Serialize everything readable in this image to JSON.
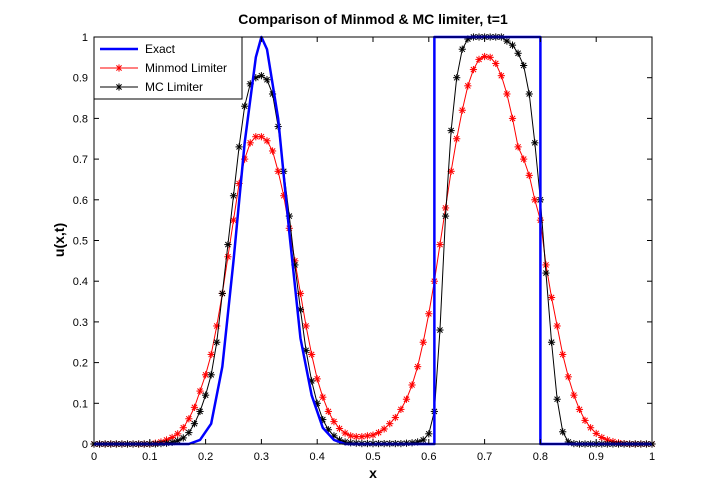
{
  "chart_data": {
    "type": "line",
    "title": "Comparison of Minmod & MC limiter, t=1",
    "xlabel": "x",
    "ylabel": "u(x,t)",
    "xlim": [
      0,
      1
    ],
    "ylim": [
      0,
      1
    ],
    "x_ticks": [
      "0",
      "0.1",
      "0.2",
      "0.3",
      "0.4",
      "0.5",
      "0.6",
      "0.7",
      "0.8",
      "0.9",
      "1"
    ],
    "y_ticks": [
      "0",
      "0.1",
      "0.2",
      "0.3",
      "0.4",
      "0.5",
      "0.6",
      "0.7",
      "0.8",
      "0.9",
      "1"
    ],
    "grid": false,
    "legend_position": "top-left",
    "series": [
      {
        "name": "Exact",
        "color": "#0000ff",
        "marker": "none",
        "points": [
          [
            0,
            0
          ],
          [
            0.17,
            0
          ],
          [
            0.19,
            0.01
          ],
          [
            0.21,
            0.05
          ],
          [
            0.23,
            0.19
          ],
          [
            0.25,
            0.45
          ],
          [
            0.27,
            0.74
          ],
          [
            0.29,
            0.95
          ],
          [
            0.3,
            1.0
          ],
          [
            0.31,
            0.97
          ],
          [
            0.33,
            0.8
          ],
          [
            0.35,
            0.52
          ],
          [
            0.37,
            0.26
          ],
          [
            0.39,
            0.12
          ],
          [
            0.41,
            0.04
          ],
          [
            0.43,
            0.01
          ],
          [
            0.45,
            0
          ],
          [
            0.61,
            0
          ],
          [
            0.61,
            1.0
          ],
          [
            0.8,
            1.0
          ],
          [
            0.8,
            0
          ],
          [
            1.0,
            0
          ]
        ]
      },
      {
        "name": "Minmod Limiter",
        "color": "#ff0000",
        "marker": "*",
        "points": [
          [
            0,
            0
          ],
          [
            0.01,
            0
          ],
          [
            0.02,
            0
          ],
          [
            0.03,
            0
          ],
          [
            0.04,
            0
          ],
          [
            0.05,
            0
          ],
          [
            0.06,
            0
          ],
          [
            0.07,
            0
          ],
          [
            0.08,
            0
          ],
          [
            0.09,
            0
          ],
          [
            0.1,
            0
          ],
          [
            0.11,
            0.002
          ],
          [
            0.12,
            0.005
          ],
          [
            0.13,
            0.01
          ],
          [
            0.14,
            0.016
          ],
          [
            0.15,
            0.025
          ],
          [
            0.16,
            0.04
          ],
          [
            0.17,
            0.062
          ],
          [
            0.18,
            0.09
          ],
          [
            0.19,
            0.13
          ],
          [
            0.2,
            0.17
          ],
          [
            0.21,
            0.22
          ],
          [
            0.22,
            0.29
          ],
          [
            0.23,
            0.37
          ],
          [
            0.24,
            0.46
          ],
          [
            0.25,
            0.55
          ],
          [
            0.26,
            0.64
          ],
          [
            0.27,
            0.7
          ],
          [
            0.28,
            0.74
          ],
          [
            0.29,
            0.755
          ],
          [
            0.3,
            0.755
          ],
          [
            0.31,
            0.745
          ],
          [
            0.32,
            0.72
          ],
          [
            0.33,
            0.67
          ],
          [
            0.34,
            0.61
          ],
          [
            0.35,
            0.53
          ],
          [
            0.36,
            0.45
          ],
          [
            0.37,
            0.37
          ],
          [
            0.38,
            0.29
          ],
          [
            0.39,
            0.22
          ],
          [
            0.4,
            0.16
          ],
          [
            0.41,
            0.115
          ],
          [
            0.42,
            0.08
          ],
          [
            0.43,
            0.055
          ],
          [
            0.44,
            0.038
          ],
          [
            0.45,
            0.027
          ],
          [
            0.46,
            0.02
          ],
          [
            0.47,
            0.018
          ],
          [
            0.48,
            0.018
          ],
          [
            0.49,
            0.02
          ],
          [
            0.5,
            0.022
          ],
          [
            0.51,
            0.028
          ],
          [
            0.52,
            0.037
          ],
          [
            0.53,
            0.05
          ],
          [
            0.54,
            0.065
          ],
          [
            0.55,
            0.085
          ],
          [
            0.56,
            0.11
          ],
          [
            0.57,
            0.145
          ],
          [
            0.58,
            0.19
          ],
          [
            0.59,
            0.25
          ],
          [
            0.6,
            0.32
          ],
          [
            0.61,
            0.4
          ],
          [
            0.62,
            0.49
          ],
          [
            0.63,
            0.58
          ],
          [
            0.64,
            0.67
          ],
          [
            0.65,
            0.75
          ],
          [
            0.66,
            0.82
          ],
          [
            0.67,
            0.88
          ],
          [
            0.68,
            0.92
          ],
          [
            0.69,
            0.945
          ],
          [
            0.7,
            0.952
          ],
          [
            0.71,
            0.95
          ],
          [
            0.72,
            0.935
          ],
          [
            0.73,
            0.905
          ],
          [
            0.74,
            0.86
          ],
          [
            0.75,
            0.8
          ],
          [
            0.76,
            0.73
          ],
          [
            0.77,
            0.7
          ],
          [
            0.78,
            0.66
          ],
          [
            0.79,
            0.6
          ],
          [
            0.8,
            0.55
          ],
          [
            0.81,
            0.44
          ],
          [
            0.82,
            0.36
          ],
          [
            0.83,
            0.29
          ],
          [
            0.84,
            0.22
          ],
          [
            0.85,
            0.165
          ],
          [
            0.86,
            0.12
          ],
          [
            0.87,
            0.085
          ],
          [
            0.88,
            0.058
          ],
          [
            0.89,
            0.04
          ],
          [
            0.9,
            0.026
          ],
          [
            0.91,
            0.016
          ],
          [
            0.92,
            0.01
          ],
          [
            0.93,
            0.006
          ],
          [
            0.94,
            0.003
          ],
          [
            0.95,
            0.001
          ],
          [
            0.96,
            0
          ],
          [
            0.97,
            0
          ],
          [
            0.98,
            0
          ],
          [
            0.99,
            0
          ],
          [
            1.0,
            0
          ]
        ]
      },
      {
        "name": "MC Limiter",
        "color": "#000000",
        "marker": "*",
        "points": [
          [
            0,
            0
          ],
          [
            0.01,
            0
          ],
          [
            0.02,
            0
          ],
          [
            0.03,
            0
          ],
          [
            0.04,
            0
          ],
          [
            0.05,
            0
          ],
          [
            0.06,
            0
          ],
          [
            0.07,
            0
          ],
          [
            0.08,
            0
          ],
          [
            0.09,
            0
          ],
          [
            0.1,
            0
          ],
          [
            0.11,
            0
          ],
          [
            0.12,
            0.001
          ],
          [
            0.13,
            0.002
          ],
          [
            0.14,
            0.004
          ],
          [
            0.15,
            0.008
          ],
          [
            0.16,
            0.015
          ],
          [
            0.17,
            0.028
          ],
          [
            0.18,
            0.05
          ],
          [
            0.19,
            0.08
          ],
          [
            0.2,
            0.12
          ],
          [
            0.21,
            0.17
          ],
          [
            0.22,
            0.25
          ],
          [
            0.23,
            0.37
          ],
          [
            0.24,
            0.49
          ],
          [
            0.25,
            0.61
          ],
          [
            0.26,
            0.73
          ],
          [
            0.27,
            0.83
          ],
          [
            0.28,
            0.885
          ],
          [
            0.29,
            0.9
          ],
          [
            0.3,
            0.905
          ],
          [
            0.31,
            0.895
          ],
          [
            0.32,
            0.86
          ],
          [
            0.33,
            0.78
          ],
          [
            0.34,
            0.67
          ],
          [
            0.35,
            0.56
          ],
          [
            0.36,
            0.44
          ],
          [
            0.37,
            0.33
          ],
          [
            0.38,
            0.23
          ],
          [
            0.39,
            0.155
          ],
          [
            0.4,
            0.1
          ],
          [
            0.41,
            0.06
          ],
          [
            0.42,
            0.035
          ],
          [
            0.43,
            0.02
          ],
          [
            0.44,
            0.01
          ],
          [
            0.45,
            0.005
          ],
          [
            0.46,
            0.003
          ],
          [
            0.47,
            0.002
          ],
          [
            0.48,
            0.001
          ],
          [
            0.49,
            0.001
          ],
          [
            0.5,
            0.001
          ],
          [
            0.51,
            0.001
          ],
          [
            0.52,
            0.001
          ],
          [
            0.53,
            0.001
          ],
          [
            0.54,
            0.001
          ],
          [
            0.55,
            0.001
          ],
          [
            0.56,
            0.002
          ],
          [
            0.57,
            0.003
          ],
          [
            0.58,
            0.005
          ],
          [
            0.59,
            0.01
          ],
          [
            0.6,
            0.025
          ],
          [
            0.61,
            0.08
          ],
          [
            0.62,
            0.28
          ],
          [
            0.63,
            0.56
          ],
          [
            0.64,
            0.77
          ],
          [
            0.65,
            0.9
          ],
          [
            0.66,
            0.97
          ],
          [
            0.67,
            0.995
          ],
          [
            0.68,
            1.0
          ],
          [
            0.69,
            1.0
          ],
          [
            0.7,
            1.0
          ],
          [
            0.71,
            1.0
          ],
          [
            0.72,
            1.0
          ],
          [
            0.73,
            1.0
          ],
          [
            0.74,
            0.99
          ],
          [
            0.75,
            0.98
          ],
          [
            0.76,
            0.96
          ],
          [
            0.77,
            0.93
          ],
          [
            0.78,
            0.86
          ],
          [
            0.79,
            0.74
          ],
          [
            0.8,
            0.6
          ],
          [
            0.81,
            0.42
          ],
          [
            0.82,
            0.25
          ],
          [
            0.83,
            0.11
          ],
          [
            0.84,
            0.03
          ],
          [
            0.85,
            0.005
          ],
          [
            0.86,
            0.001
          ],
          [
            0.87,
            0
          ],
          [
            0.88,
            0
          ],
          [
            0.89,
            0
          ],
          [
            0.9,
            0
          ],
          [
            0.91,
            0
          ],
          [
            0.92,
            0
          ],
          [
            0.93,
            0
          ],
          [
            0.94,
            0
          ],
          [
            0.95,
            0
          ],
          [
            0.96,
            0
          ],
          [
            0.97,
            0
          ],
          [
            0.98,
            0
          ],
          [
            0.99,
            0
          ],
          [
            1.0,
            0
          ]
        ]
      }
    ]
  }
}
